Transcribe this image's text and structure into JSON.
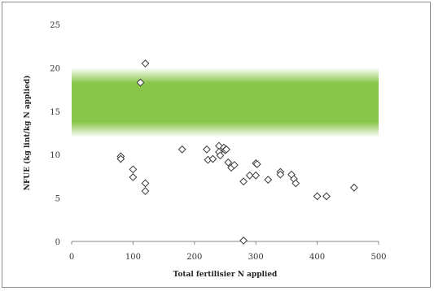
{
  "chart_data": {
    "type": "scatter",
    "title": "",
    "xlabel": "Total fertilisier N applied",
    "ylabel": "NFUE (kg lint/kg N applied)",
    "xlim": [
      0,
      500
    ],
    "ylim": [
      0,
      25
    ],
    "x_ticks": [
      "0",
      "100",
      "200",
      "300",
      "400",
      "500"
    ],
    "y_ticks": [
      "0",
      "5",
      "10",
      "15",
      "20",
      "25"
    ],
    "grid": false,
    "legend": "none",
    "marker": "diamond",
    "band": {
      "from": 12,
      "to": 20,
      "core_from": 13.5,
      "core_to": 18.5,
      "color": "#7bbf36"
    },
    "series": [
      {
        "points": [
          [
            80,
            9.8
          ],
          [
            80,
            9.5
          ],
          [
            100,
            8.3
          ],
          [
            100,
            7.4
          ],
          [
            112,
            18.3
          ],
          [
            120,
            20.5
          ],
          [
            120,
            6.7
          ],
          [
            120,
            5.8
          ],
          [
            180,
            10.6
          ],
          [
            220,
            10.6
          ],
          [
            222,
            9.4
          ],
          [
            230,
            9.5
          ],
          [
            240,
            11.0
          ],
          [
            240,
            10.3
          ],
          [
            242,
            9.9
          ],
          [
            248,
            10.8
          ],
          [
            250,
            10.5
          ],
          [
            252,
            10.6
          ],
          [
            255,
            9.1
          ],
          [
            260,
            8.5
          ],
          [
            265,
            8.8
          ],
          [
            280,
            0.1
          ],
          [
            280,
            6.9
          ],
          [
            290,
            7.6
          ],
          [
            300,
            9.0
          ],
          [
            302,
            8.9
          ],
          [
            300,
            7.6
          ],
          [
            320,
            7.1
          ],
          [
            340,
            8.0
          ],
          [
            340,
            7.7
          ],
          [
            358,
            7.7
          ],
          [
            362,
            7.2
          ],
          [
            365,
            6.7
          ],
          [
            400,
            5.2
          ],
          [
            415,
            5.2
          ],
          [
            460,
            6.2
          ]
        ]
      }
    ]
  }
}
